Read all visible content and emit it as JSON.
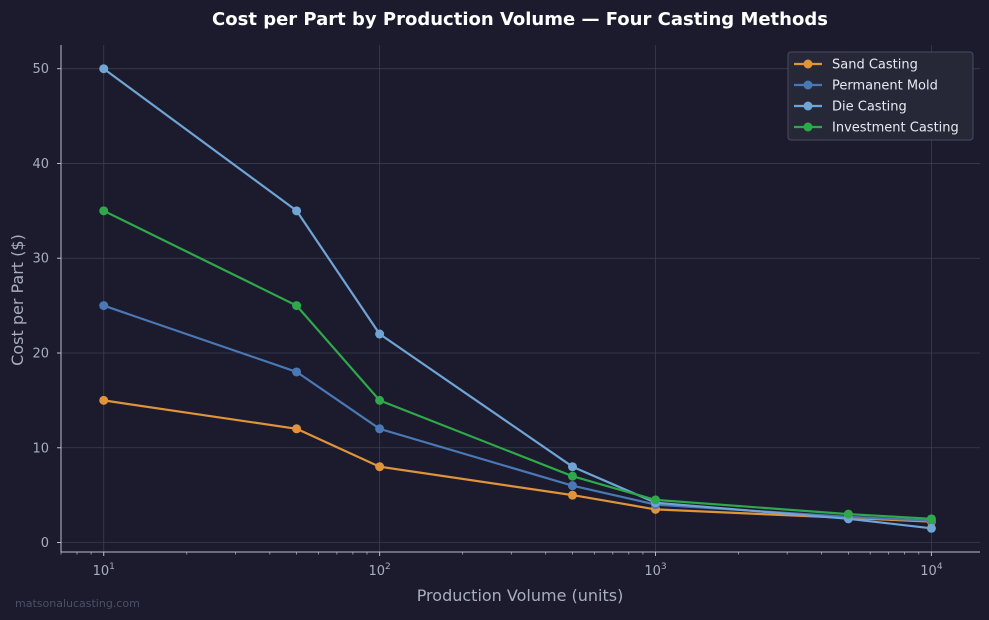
{
  "watermark": "matsonalucasting.com",
  "chart_data": {
    "type": "line",
    "title": "Cost per Part by Production Volume — Four Casting Methods",
    "xlabel": "Production Volume (units)",
    "ylabel": "Cost per Part ($)",
    "x_scale": "log",
    "x": [
      10,
      50,
      100,
      500,
      1000,
      5000,
      10000
    ],
    "xlim": [
      7,
      15000
    ],
    "ylim": [
      -1,
      52.5
    ],
    "xticks": [
      {
        "value": 10,
        "base": "10",
        "exp": "1"
      },
      {
        "value": 100,
        "base": "10",
        "exp": "2"
      },
      {
        "value": 1000,
        "base": "10",
        "exp": "3"
      },
      {
        "value": 10000,
        "base": "10",
        "exp": "4"
      }
    ],
    "yticks": [
      0,
      10,
      20,
      30,
      40,
      50
    ],
    "grid": true,
    "legend_position": "top-right",
    "series": [
      {
        "name": "Sand Casting",
        "color": "#e0943a",
        "values": [
          15,
          12,
          8,
          5,
          3.5,
          2.6,
          2.2
        ]
      },
      {
        "name": "Permanent Mold",
        "color": "#4a78b5",
        "values": [
          25,
          18,
          12,
          6,
          4,
          2.7,
          2.3
        ]
      },
      {
        "name": "Die Casting",
        "color": "#6fa4d4",
        "values": [
          50,
          35,
          22,
          8,
          4.2,
          2.5,
          1.5
        ]
      },
      {
        "name": "Investment Casting",
        "color": "#2ea84a",
        "values": [
          35,
          25,
          15,
          7,
          4.5,
          3,
          2.5
        ]
      }
    ]
  }
}
